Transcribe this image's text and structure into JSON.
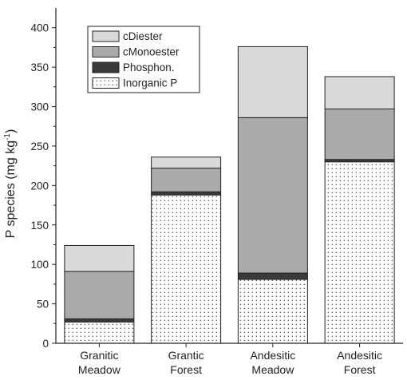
{
  "chart_data": {
    "type": "bar",
    "stacked": true,
    "categories": [
      [
        "Granitic",
        "Meadow"
      ],
      [
        "Grantic",
        "Forest"
      ],
      [
        "Andesitic",
        "Meadow"
      ],
      [
        "Andesitic",
        "Forest"
      ]
    ],
    "series": [
      {
        "name": "Inorganic P",
        "pattern": "dots",
        "color": "#ffffff",
        "values": [
          27,
          188,
          81,
          230
        ]
      },
      {
        "name": "Phosphon.",
        "color": "#3a3a3a",
        "values": [
          4,
          4,
          8,
          3
        ]
      },
      {
        "name": "cMonoester",
        "color": "#aaaaaa",
        "values": [
          60,
          30,
          197,
          64
        ]
      },
      {
        "name": "cDiester",
        "color": "#d9d9d9",
        "values": [
          33,
          14,
          90,
          41
        ]
      }
    ],
    "legend_order": [
      "cDiester",
      "cMonoester",
      "Phosphon.",
      "Inorganic P"
    ],
    "ylabel_parts": [
      "P species (mg kg",
      "-1",
      ")"
    ],
    "ylim": [
      0,
      425
    ],
    "yticks": [
      0,
      50,
      100,
      150,
      200,
      250,
      300,
      350,
      400
    ],
    "legend_position": "top-left",
    "grid": false
  }
}
